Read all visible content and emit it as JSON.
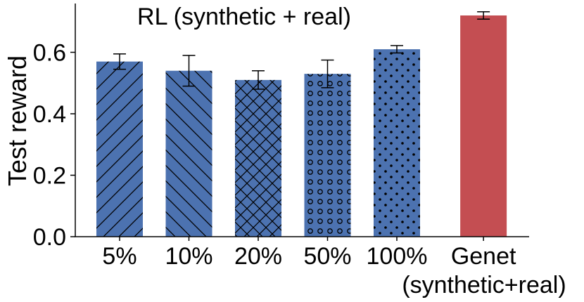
{
  "chart_data": {
    "type": "bar",
    "title": "RL (synthetic + real)",
    "xlabel": "",
    "ylabel": "Test reward",
    "ylim": [
      0,
      0.78
    ],
    "yticks": [
      "0.0",
      "0.2",
      "0.4",
      "0.6"
    ],
    "ytick_values": [
      0.0,
      0.2,
      0.4,
      0.6
    ],
    "categories": [
      "5%",
      "10%",
      "20%",
      "50%",
      "100%",
      "Genet"
    ],
    "category_sublabel": "(synthetic+real)",
    "values": [
      0.57,
      0.54,
      0.51,
      0.53,
      0.61,
      0.72
    ],
    "errors": [
      0.025,
      0.05,
      0.03,
      0.045,
      0.012,
      0.012
    ],
    "patterns": [
      "diag-up",
      "diag-down",
      "crosshatch",
      "circles",
      "dots",
      "none"
    ],
    "colors": [
      "#4c72b0",
      "#4c72b0",
      "#4c72b0",
      "#4c72b0",
      "#4c72b0",
      "#c44e52"
    ],
    "positions": [
      0,
      1,
      2,
      3,
      4,
      5.25
    ],
    "grid": false,
    "legend": "none"
  }
}
